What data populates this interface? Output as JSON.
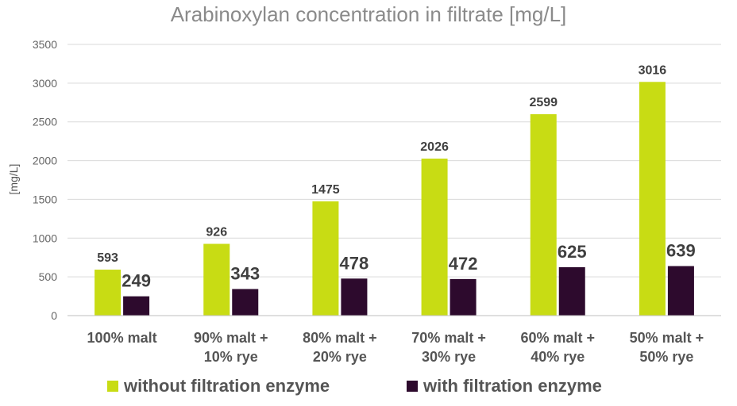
{
  "chart_data": {
    "type": "bar",
    "title": "Arabinoxylan concentration in filtrate [mg/L]",
    "ylabel": "[mg/L]",
    "xlabel": "",
    "ylim": [
      0,
      3500
    ],
    "yticks": [
      "0",
      "500",
      "1000",
      "1500",
      "2000",
      "2500",
      "3000",
      "3500"
    ],
    "grid": true,
    "legend_position": "bottom",
    "categories": [
      [
        "100%  malt"
      ],
      [
        "90%  malt +",
        "10%  rye"
      ],
      [
        "80%  malt +",
        "20%  rye"
      ],
      [
        "70%  malt +",
        "30%  rye"
      ],
      [
        "60%  malt +",
        "40%  rye"
      ],
      [
        "50%  malt +",
        "50%  rye"
      ]
    ],
    "series": [
      {
        "name": "without filtration enzyme",
        "color": "#c8dc14",
        "values": [
          593,
          926,
          1475,
          2026,
          2599,
          3016
        ]
      },
      {
        "name": "with filtration enzyme",
        "color": "#2d0a2d",
        "values": [
          249,
          343,
          478,
          472,
          625,
          639
        ]
      }
    ]
  }
}
